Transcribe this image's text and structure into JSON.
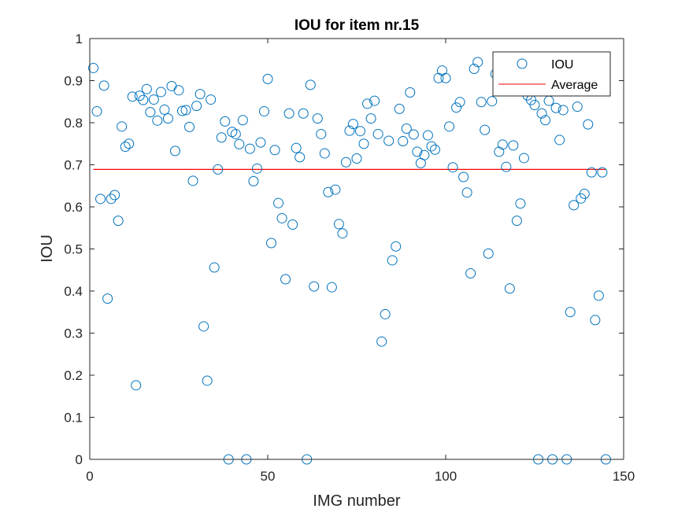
{
  "chart_data": {
    "type": "scatter",
    "title": "IOU for item nr.15",
    "xlabel": "IMG number",
    "ylabel": "IOU",
    "xlim": [
      0,
      150
    ],
    "ylim": [
      0,
      1
    ],
    "xticks": [
      0,
      50,
      100,
      150
    ],
    "yticks": [
      0,
      0.1,
      0.2,
      0.3,
      0.4,
      0.5,
      0.6,
      0.7,
      0.8,
      0.9,
      1
    ],
    "xtick_labels": [
      "0",
      "50",
      "100",
      "150"
    ],
    "ytick_labels": [
      "0",
      "0.1",
      "0.2",
      "0.3",
      "0.4",
      "0.5",
      "0.6",
      "0.7",
      "0.8",
      "0.9",
      "1"
    ],
    "grid": false,
    "legend": {
      "position": "top-right",
      "entries": [
        "IOU",
        "Average"
      ]
    },
    "colors": {
      "marker": "#0072BD",
      "average": "#FF0000"
    },
    "series": [
      {
        "name": "IOU",
        "kind": "scatter",
        "x": [
          1,
          2,
          3,
          4,
          5,
          6,
          7,
          8,
          9,
          10,
          11,
          12,
          13,
          14,
          15,
          16,
          17,
          18,
          19,
          20,
          21,
          22,
          23,
          24,
          25,
          26,
          27,
          28,
          29,
          30,
          31,
          32,
          33,
          34,
          35,
          36,
          37,
          38,
          39,
          40,
          41,
          42,
          43,
          44,
          45,
          46,
          47,
          48,
          49,
          50,
          51,
          52,
          53,
          54,
          55,
          56,
          57,
          58,
          59,
          60,
          61,
          62,
          63,
          64,
          65,
          66,
          67,
          68,
          69,
          70,
          71,
          72,
          73,
          74,
          75,
          76,
          77,
          78,
          79,
          80,
          81,
          82,
          83,
          84,
          85,
          86,
          87,
          88,
          89,
          90,
          91,
          92,
          93,
          94,
          95,
          96,
          97,
          98,
          99,
          100,
          101,
          102,
          103,
          104,
          105,
          106,
          107,
          108,
          109,
          110,
          111,
          112,
          113,
          114,
          115,
          116,
          117,
          118,
          119,
          120,
          121,
          122,
          123,
          124,
          125,
          126,
          127,
          128,
          129,
          130,
          131,
          132,
          133,
          134,
          135,
          136,
          137,
          138,
          139,
          140,
          141,
          142,
          143,
          144,
          145
        ],
        "y": [
          0.93,
          0.827,
          0.619,
          0.888,
          0.382,
          0.619,
          0.628,
          0.567,
          0.791,
          0.743,
          0.75,
          0.862,
          0.176,
          0.864,
          0.854,
          0.88,
          0.825,
          0.855,
          0.805,
          0.873,
          0.831,
          0.81,
          0.887,
          0.733,
          0.877,
          0.828,
          0.83,
          0.79,
          0.662,
          0.84,
          0.868,
          0.316,
          0.187,
          0.855,
          0.456,
          0.689,
          0.765,
          0.803,
          0.0,
          0.778,
          0.773,
          0.749,
          0.806,
          0.0,
          0.738,
          0.661,
          0.691,
          0.753,
          0.827,
          0.904,
          0.514,
          0.735,
          0.609,
          0.573,
          0.428,
          0.822,
          0.558,
          0.74,
          0.718,
          0.822,
          0.0,
          0.89,
          0.411,
          0.81,
          0.773,
          0.727,
          0.635,
          0.409,
          0.641,
          0.559,
          0.537,
          0.706,
          0.781,
          0.797,
          0.715,
          0.78,
          0.75,
          0.845,
          0.81,
          0.852,
          0.773,
          0.28,
          0.345,
          0.757,
          0.473,
          0.506,
          0.833,
          0.756,
          0.786,
          0.872,
          0.772,
          0.731,
          0.704,
          0.723,
          0.77,
          0.744,
          0.736,
          0.906,
          0.924,
          0.906,
          0.791,
          0.694,
          0.836,
          0.849,
          0.671,
          0.634,
          0.442,
          0.928,
          0.944,
          0.849,
          0.783,
          0.489,
          0.851,
          0.916,
          0.731,
          0.748,
          0.695,
          0.406,
          0.746,
          0.567,
          0.608,
          0.716,
          0.865,
          0.854,
          0.842,
          0.0,
          0.822,
          0.806,
          0.852,
          0.0,
          0.835,
          0.759,
          0.83,
          0.0,
          0.35,
          0.604,
          0.838,
          0.62,
          0.631,
          0.796,
          0.682,
          0.331,
          0.389,
          0.682,
          0.0
        ]
      },
      {
        "name": "Average",
        "kind": "line",
        "x": [
          1,
          145
        ],
        "y": [
          0.689,
          0.689
        ]
      }
    ]
  }
}
